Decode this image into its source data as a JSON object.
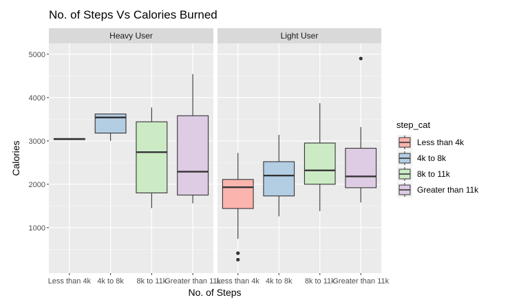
{
  "chart_data": {
    "type": "box",
    "title": "No. of Steps Vs Calories Burned",
    "xlabel": "No. of Steps",
    "ylabel": "Calories",
    "ylim": [
      -50,
      5250
    ],
    "yticks": [
      1000,
      2000,
      3000,
      4000,
      5000
    ],
    "grid": true,
    "facets": [
      "Heavy User",
      "Light User"
    ],
    "categories": [
      "Less than 4k",
      "4k to 8k",
      "8k to 11k",
      "Greater than 11k"
    ],
    "legend": {
      "title": "step_cat",
      "position": "right",
      "entries": [
        "Less than 4k",
        "4k to 8k",
        "8k to 11k",
        "Greater than 11k"
      ]
    },
    "colors": [
      "#FBB4AE",
      "#B3CDE3",
      "#CCEBC5",
      "#DECBE4"
    ],
    "boxes": [
      {
        "facet": "Heavy User",
        "category": "Less than 4k",
        "min": 3030,
        "q1": 3030,
        "median": 3040,
        "q3": 3055,
        "max": 3060,
        "outliers": []
      },
      {
        "facet": "Heavy User",
        "category": "4k to 8k",
        "min": 3000,
        "q1": 3180,
        "median": 3540,
        "q3": 3620,
        "max": 3620,
        "outliers": []
      },
      {
        "facet": "Heavy User",
        "category": "8k to 11k",
        "min": 1450,
        "q1": 1800,
        "median": 2740,
        "q3": 3440,
        "max": 3770,
        "outliers": []
      },
      {
        "facet": "Heavy User",
        "category": "Greater than 11k",
        "min": 1560,
        "q1": 1750,
        "median": 2290,
        "q3": 3580,
        "max": 4540,
        "outliers": []
      },
      {
        "facet": "Light User",
        "category": "Less than 4k",
        "min": 740,
        "q1": 1440,
        "median": 1930,
        "q3": 2110,
        "max": 2720,
        "outliers": [
          410,
          260
        ]
      },
      {
        "facet": "Light User",
        "category": "4k to 8k",
        "min": 1260,
        "q1": 1730,
        "median": 2200,
        "q3": 2520,
        "max": 3140,
        "outliers": []
      },
      {
        "facet": "Light User",
        "category": "8k to 11k",
        "min": 1380,
        "q1": 2000,
        "median": 2320,
        "q3": 2950,
        "max": 3870,
        "outliers": []
      },
      {
        "facet": "Light User",
        "category": "Greater than 11k",
        "min": 1580,
        "q1": 1920,
        "median": 2180,
        "q3": 2830,
        "max": 3320,
        "outliers": [
          4900
        ]
      }
    ]
  }
}
